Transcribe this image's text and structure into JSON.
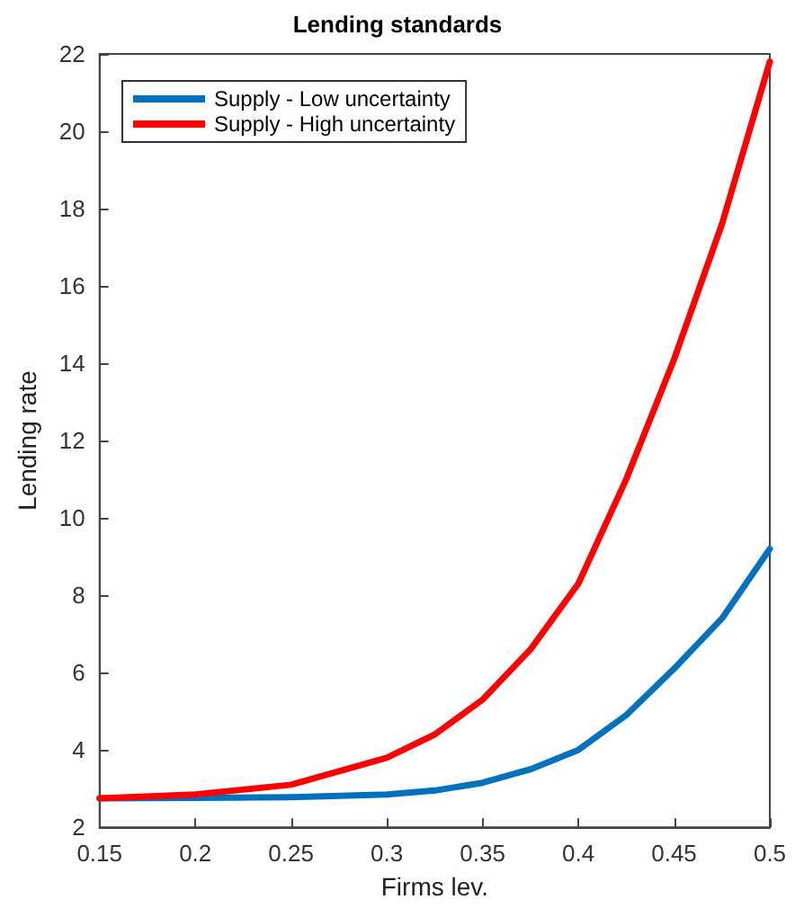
{
  "chart_data": {
    "type": "line",
    "title": "Lending standards",
    "xlabel": "Firms lev.",
    "ylabel": "Lending rate",
    "x": [
      0.15,
      0.2,
      0.25,
      0.3,
      0.325,
      0.35,
      0.375,
      0.4,
      0.425,
      0.45,
      0.475,
      0.5
    ],
    "series": [
      {
        "name": "Supply - Low uncertainty",
        "color": "#0072bd",
        "values": [
          2.75,
          2.76,
          2.78,
          2.85,
          2.95,
          3.15,
          3.5,
          4.0,
          4.9,
          6.1,
          7.4,
          9.2
        ]
      },
      {
        "name": "Supply - High uncertainty",
        "color": "#ff0000",
        "values": [
          2.75,
          2.85,
          3.1,
          3.8,
          4.4,
          5.3,
          6.6,
          8.3,
          11.0,
          14.1,
          17.6,
          21.8
        ]
      }
    ],
    "xlim": [
      0.15,
      0.5
    ],
    "xticks": [
      0.15,
      0.2,
      0.25,
      0.3,
      0.35,
      0.4,
      0.45,
      0.5
    ],
    "ylim": [
      2,
      22
    ],
    "yticks": [
      2,
      4,
      6,
      8,
      10,
      12,
      14,
      16,
      18,
      20,
      22
    ],
    "grid": false,
    "legend": "top left",
    "marker": "none",
    "line_style": "solid"
  }
}
